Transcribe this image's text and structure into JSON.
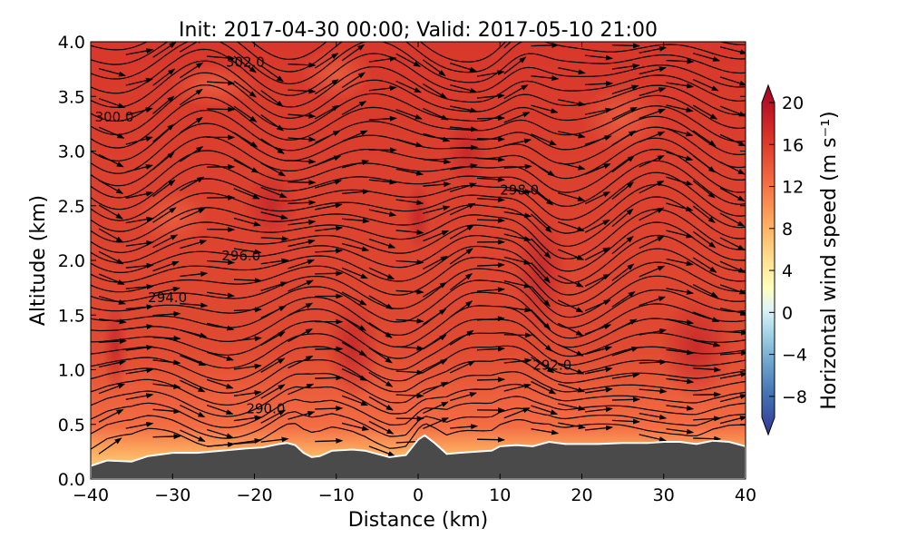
{
  "chart_data": {
    "type": "heatmap",
    "title": "Init: 2017-04-30 00:00; Valid: 2017-05-10 21:00",
    "xlabel": "Distance (km)",
    "ylabel": "Altitude (km)",
    "xlim": [
      -40,
      40
    ],
    "ylim": [
      0.0,
      4.0
    ],
    "xticks": [
      "−40",
      "−30",
      "−20",
      "−10",
      "0",
      "10",
      "20",
      "30",
      "40"
    ],
    "yticks": [
      "0.0",
      "0.5",
      "1.0",
      "1.5",
      "2.0",
      "2.5",
      "3.0",
      "3.5",
      "4.0"
    ],
    "colorbar": {
      "label": "Horizontal wind speed (m s⁻¹)",
      "ticks": [
        "20",
        "16",
        "12",
        "8",
        "4",
        "0",
        "−4",
        "−8"
      ],
      "range": [
        -10,
        20
      ],
      "extend": "both"
    },
    "contour_labels": [
      {
        "text": "302.0",
        "x": -23.5,
        "y": 3.77
      },
      {
        "text": "300.0",
        "x": -39.5,
        "y": 3.27
      },
      {
        "text": "298.0",
        "x": 10,
        "y": 2.6
      },
      {
        "text": "296.0",
        "x": -24,
        "y": 2.0
      },
      {
        "text": "294.0",
        "x": -33,
        "y": 1.62
      },
      {
        "text": "292.0",
        "x": 14,
        "y": 1.0
      },
      {
        "text": "290.0",
        "x": -21,
        "y": 0.6
      }
    ],
    "terrain": [
      [
        -40,
        0.12
      ],
      [
        -38,
        0.17
      ],
      [
        -35,
        0.16
      ],
      [
        -33,
        0.21
      ],
      [
        -30,
        0.24
      ],
      [
        -27,
        0.24
      ],
      [
        -24,
        0.26
      ],
      [
        -21,
        0.28
      ],
      [
        -19,
        0.29
      ],
      [
        -17,
        0.32
      ],
      [
        -16,
        0.33
      ],
      [
        -15,
        0.31
      ],
      [
        -14,
        0.24
      ],
      [
        -13,
        0.2
      ],
      [
        -12,
        0.21
      ],
      [
        -10.5,
        0.26
      ],
      [
        -8,
        0.27
      ],
      [
        -6.5,
        0.26
      ],
      [
        -5,
        0.23
      ],
      [
        -3.5,
        0.2
      ],
      [
        -1.5,
        0.22
      ],
      [
        0,
        0.36
      ],
      [
        0.8,
        0.4
      ],
      [
        2,
        0.33
      ],
      [
        3.5,
        0.23
      ],
      [
        5,
        0.24
      ],
      [
        7,
        0.25
      ],
      [
        9,
        0.26
      ],
      [
        10,
        0.3
      ],
      [
        12,
        0.31
      ],
      [
        14,
        0.3
      ],
      [
        16,
        0.34
      ],
      [
        18,
        0.32
      ],
      [
        20,
        0.32
      ],
      [
        22,
        0.32
      ],
      [
        25,
        0.33
      ],
      [
        28,
        0.33
      ],
      [
        30,
        0.34
      ],
      [
        32,
        0.34
      ],
      [
        34,
        0.32
      ],
      [
        36,
        0.35
      ],
      [
        38,
        0.34
      ],
      [
        40,
        0.3
      ]
    ]
  },
  "colors": {
    "terrain": "#4a4a4a",
    "contour": "#000000",
    "colormap": "RdYlBu_r"
  }
}
